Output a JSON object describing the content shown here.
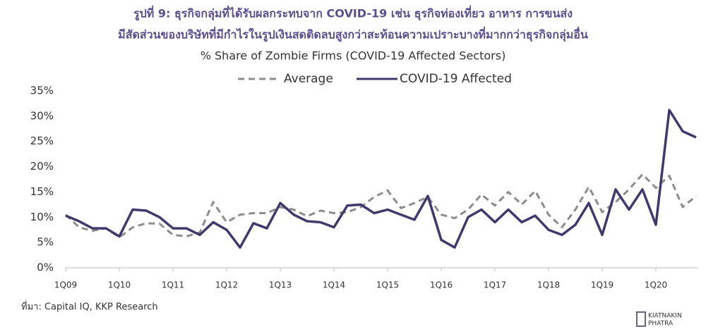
{
  "chart_data": {
    "type": "line",
    "title": "รูปที่ 9: ธุรกิจกลุ่มที่ได้รับผลกระทบจาก COVID-19 เช่น ธุรกิจท่องเที่ยว อาหาร การขนส่ง",
    "title2": "มีสัดส่วนของบริษัทที่มีกำไรในรูปเงินสดติดลบสูงกว่าสะท้อนความเปราะบางที่มากกว่าธุรกิจกลุ่มอื่น",
    "subtitle": "% Share of Zombie Firms (COVID-19 Affected Sectors)",
    "source": "ที่มา: Capital IQ, KKP Research",
    "logo": [
      "KIATNAKIN",
      "PHATRA"
    ],
    "categories": [
      "1Q09",
      null,
      null,
      null,
      "1Q10",
      null,
      null,
      null,
      "1Q11",
      null,
      null,
      null,
      "1Q12",
      null,
      null,
      null,
      "1Q13",
      null,
      null,
      null,
      "1Q14",
      null,
      null,
      null,
      "1Q15",
      null,
      null,
      null,
      "1Q16",
      null,
      null,
      null,
      "1Q17",
      null,
      null,
      null,
      "1Q18",
      null,
      null,
      null,
      "1Q19",
      null,
      null,
      null,
      "1Q20",
      null,
      null,
      null
    ],
    "series": [
      {
        "name": "Average",
        "color": "#8c8c8c",
        "dash": true,
        "values": [
          10.5,
          8,
          7.3,
          7.8,
          6,
          8,
          8.8,
          8.7,
          6.5,
          6.2,
          7,
          13,
          9,
          10.5,
          10.8,
          10.8,
          12,
          11.5,
          10.2,
          11.3,
          10.8,
          11,
          12,
          14,
          15.3,
          11.8,
          12.8,
          14,
          10.5,
          9.8,
          11.5,
          14.5,
          12.3,
          15,
          12.5,
          15.2,
          10.5,
          8,
          11.5,
          16,
          11,
          13,
          15.5,
          18.5,
          15.8,
          18.2,
          12,
          14.2
        ]
      },
      {
        "name": "COVID-19 Affected",
        "color": "#3f3a6b",
        "dash": false,
        "values": [
          10.3,
          9.2,
          7.8,
          7.8,
          6.2,
          11.5,
          11.3,
          10,
          7.8,
          7.8,
          6.5,
          9,
          7.5,
          4,
          8.8,
          7.8,
          12.8,
          10.5,
          9.2,
          9,
          8,
          12.3,
          12.5,
          10.8,
          11.5,
          10.5,
          9.5,
          14.2,
          5.5,
          4,
          10,
          11.5,
          9,
          11.5,
          9,
          10.3,
          7.5,
          6.5,
          8.5,
          12.8,
          6.5,
          15.5,
          11.5,
          15.5,
          8.5,
          31.2,
          27,
          25.8
        ]
      }
    ],
    "ylim": [
      0,
      35
    ],
    "yticks": [
      {
        "value": 0,
        "label": "0%"
      },
      {
        "value": 5,
        "label": "5%"
      },
      {
        "value": 10,
        "label": "10%"
      },
      {
        "value": 15,
        "label": "15%"
      },
      {
        "value": 20,
        "label": "20%"
      },
      {
        "value": 25,
        "label": "25%"
      },
      {
        "value": 30,
        "label": "30%"
      },
      {
        "value": 35,
        "label": "35%"
      }
    ],
    "grid": false
  }
}
